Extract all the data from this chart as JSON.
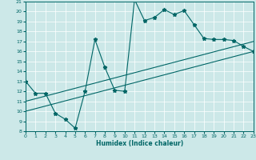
{
  "title": "",
  "xlabel": "Humidex (Indice chaleur)",
  "bg_color": "#cce8e8",
  "line_color": "#006666",
  "xlim": [
    0,
    23
  ],
  "ylim": [
    8,
    21
  ],
  "xticks": [
    0,
    1,
    2,
    3,
    4,
    5,
    6,
    7,
    8,
    9,
    10,
    11,
    12,
    13,
    14,
    15,
    16,
    17,
    18,
    19,
    20,
    21,
    22,
    23
  ],
  "yticks": [
    8,
    9,
    10,
    11,
    12,
    13,
    14,
    15,
    16,
    17,
    18,
    19,
    20,
    21
  ],
  "line1_x": [
    0,
    1,
    2,
    3,
    4,
    5,
    6,
    7,
    8,
    9,
    10,
    11,
    12,
    13,
    14,
    15,
    16,
    17,
    18,
    19,
    20,
    21,
    22,
    23
  ],
  "line1_y": [
    13,
    11.8,
    11.8,
    9.8,
    9.2,
    8.3,
    12.0,
    17.2,
    14.4,
    12.1,
    12.0,
    21.2,
    19.1,
    19.4,
    20.2,
    19.7,
    20.1,
    18.7,
    17.3,
    17.2,
    17.2,
    17.1,
    16.5,
    16.0
  ],
  "line2_x": [
    0,
    23
  ],
  "line2_y": [
    10.0,
    16.0
  ],
  "line3_x": [
    0,
    23
  ],
  "line3_y": [
    11.0,
    17.0
  ]
}
